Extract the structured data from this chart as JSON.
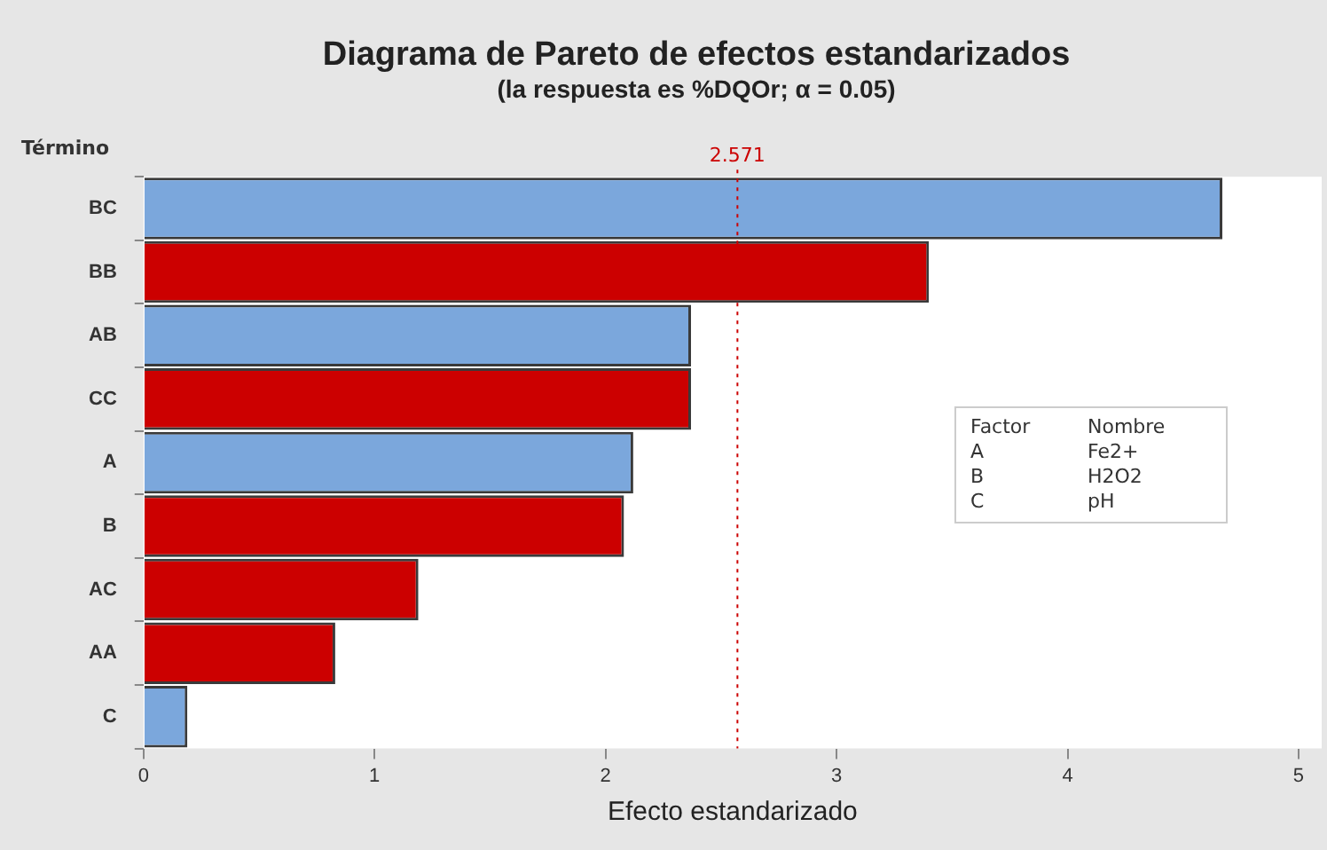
{
  "chart_data": {
    "type": "bar",
    "orientation": "horizontal",
    "title": "Diagrama de Pareto de efectos estandarizados",
    "subtitle": "(la respuesta es %DQOr; α = 0.05)",
    "xlabel": "Efecto estandarizado",
    "ylabel": "Término",
    "categories": [
      "BC",
      "BB",
      "AB",
      "CC",
      "A",
      "B",
      "AC",
      "AA",
      "C"
    ],
    "values": [
      4.67,
      3.4,
      2.37,
      2.37,
      2.12,
      2.08,
      1.19,
      0.83,
      0.19
    ],
    "colors": [
      "#7ba7dc",
      "#cc0000",
      "#7ba7dc",
      "#cc0000",
      "#7ba7dc",
      "#cc0000",
      "#cc0000",
      "#cc0000",
      "#7ba7dc"
    ],
    "xlim": [
      0,
      5.1
    ],
    "xticks": [
      0,
      1,
      2,
      3,
      4,
      5
    ],
    "ref_lines": [
      {
        "axis": "x",
        "value": 2.571,
        "label": "2.571",
        "color": "#cc0000",
        "line_style": "dotted"
      }
    ],
    "annotations": [
      "Factor",
      "Nombre",
      "A",
      "Fe2+",
      "B",
      "H2O2",
      "C",
      "pH"
    ],
    "grid": false,
    "legend": false
  }
}
